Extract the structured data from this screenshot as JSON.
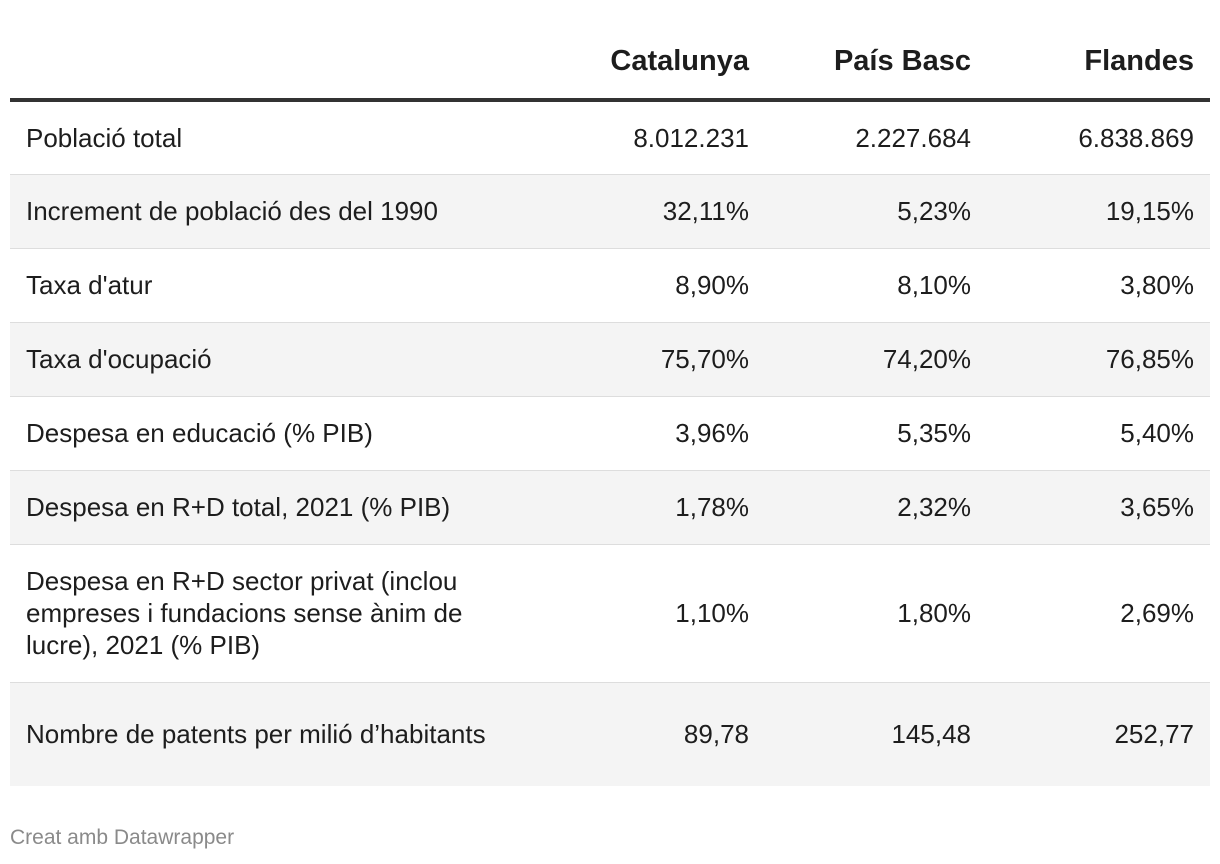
{
  "table": {
    "columns": [
      "",
      "Catalunya",
      "País Basc",
      "Flandes"
    ],
    "rows": [
      {
        "label": "Població total",
        "values": [
          "8.012.231",
          "2.227.684",
          "6.838.869"
        ]
      },
      {
        "label": "Increment de població des del 1990",
        "values": [
          "32,11%",
          "5,23%",
          "19,15%"
        ]
      },
      {
        "label": "Taxa d'atur",
        "values": [
          "8,90%",
          "8,10%",
          "3,80%"
        ]
      },
      {
        "label": "Taxa d'ocupació",
        "values": [
          "75,70%",
          "74,20%",
          "76,85%"
        ]
      },
      {
        "label": "Despesa en educació (% PIB)",
        "values": [
          "3,96%",
          "5,35%",
          "5,40%"
        ]
      },
      {
        "label": "Despesa en R+D total, 2021 (% PIB)",
        "values": [
          "1,78%",
          "2,32%",
          "3,65%"
        ]
      },
      {
        "label": "Despesa en R+D sector privat (inclou empreses i fundacions sense ànim de lucre), 2021 (% PIB)",
        "values": [
          "1,10%",
          "1,80%",
          "2,69%"
        ]
      },
      {
        "label": "Nombre de patents per milió d’habitants",
        "values": [
          "89,78",
          "145,48",
          "252,77"
        ]
      }
    ]
  },
  "footer": {
    "credit": "Creat amb Datawrapper"
  },
  "colors": {
    "header_rule": "#333333",
    "row_stripe": "#f4f4f4",
    "row_divider": "#dddddd",
    "footer_text": "#8a8a8a"
  }
}
